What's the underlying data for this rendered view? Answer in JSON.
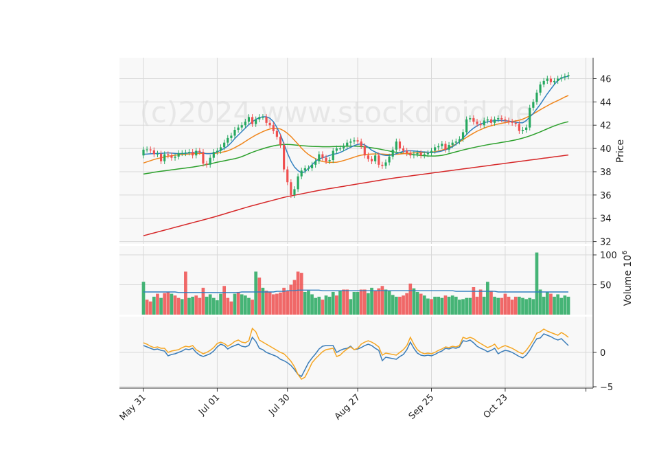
{
  "watermark": "(c)2024 www.stockdroid.de",
  "chart_data": [
    {
      "type": "candlestick",
      "panel": "price",
      "ylabel": "Price",
      "ylim": [
        31.8,
        47.8
      ],
      "yticks": [
        32,
        34,
        36,
        38,
        40,
        42,
        44,
        46
      ],
      "x_ticks": [
        {
          "index": 0,
          "label": "May 31"
        },
        {
          "index": 21,
          "label": "Jul 01"
        },
        {
          "index": 41,
          "label": "Jul 30"
        },
        {
          "index": 61,
          "label": "Aug 27"
        },
        {
          "index": 82,
          "label": "Sep 25"
        },
        {
          "index": 103,
          "label": "Oct 23"
        },
        {
          "index": 126,
          "label": ""
        }
      ],
      "grid": true,
      "colors": {
        "up": "#26a85f",
        "down": "#ef4f4f",
        "sma_10": "#2f7fbf",
        "sma_20": "#f0861c",
        "sma_50": "#2ca02c",
        "sma_200": "#d62728"
      },
      "close": [
        39.9,
        39.92,
        39.84,
        39.5,
        39.55,
        38.9,
        39.5,
        39.4,
        39.2,
        39.3,
        39.6,
        39.6,
        39.65,
        39.7,
        39.4,
        39.8,
        39.7,
        38.7,
        38.6,
        39.2,
        39.7,
        39.8,
        40.1,
        40.5,
        40.9,
        41.1,
        41.6,
        41.8,
        42.0,
        42.3,
        42.7,
        42.1,
        42.5,
        42.7,
        42.7,
        42.2,
        42.0,
        41.5,
        41.0,
        40.3,
        38.2,
        37.1,
        36.0,
        36.5,
        37.6,
        38.1,
        38.3,
        38.3,
        38.6,
        38.9,
        39.5,
        39.2,
        38.9,
        39.0,
        39.8,
        40.0,
        40.0,
        40.2,
        40.5,
        40.6,
        40.7,
        40.6,
        40.2,
        39.4,
        39.1,
        38.9,
        39.4,
        38.6,
        38.5,
        38.8,
        39.3,
        39.9,
        40.6,
        40.0,
        39.8,
        39.6,
        39.4,
        39.5,
        39.6,
        39.4,
        39.5,
        39.6,
        39.8,
        40.1,
        40.2,
        40.4,
        39.9,
        40.3,
        40.5,
        40.6,
        40.8,
        41.4,
        42.5,
        42.6,
        42.3,
        42.1,
        42.0,
        42.4,
        42.5,
        42.2,
        42.5,
        42.6,
        42.5,
        42.4,
        42.3,
        42.2,
        42.1,
        41.5,
        41.6,
        41.8,
        43.5,
        44.0,
        44.8,
        45.5,
        45.8,
        46.0,
        45.7,
        45.8,
        46.0,
        46.1,
        46.2,
        46.3
      ],
      "sma_10": [
        39.5,
        39.52,
        39.54,
        39.56,
        39.57,
        39.58,
        39.6,
        39.62,
        39.6,
        39.58,
        39.56,
        39.57,
        39.58,
        39.62,
        39.65,
        39.7,
        39.7,
        39.6,
        39.55,
        39.55,
        39.6,
        39.7,
        39.85,
        40.0,
        40.2,
        40.5,
        40.85,
        41.15,
        41.45,
        41.75,
        42.05,
        42.3,
        42.5,
        42.65,
        42.72,
        42.72,
        42.6,
        42.3,
        41.8,
        41.2,
        40.4,
        39.6,
        38.9,
        38.4,
        38.1,
        37.9,
        38.0,
        38.3,
        38.6,
        38.9,
        39.1,
        39.2,
        39.3,
        39.4,
        39.5,
        39.55,
        39.65,
        39.8,
        39.95,
        40.1,
        40.25,
        40.35,
        40.4,
        40.3,
        40.1,
        39.85,
        39.7,
        39.55,
        39.45,
        39.4,
        39.4,
        39.45,
        39.55,
        39.65,
        39.75,
        39.8,
        39.8,
        39.78,
        39.75,
        39.72,
        39.7,
        39.68,
        39.66,
        39.67,
        39.72,
        39.78,
        39.88,
        40.0,
        40.15,
        40.35,
        40.6,
        40.9,
        41.2,
        41.5,
        41.75,
        41.95,
        42.1,
        42.2,
        42.3,
        42.35,
        42.38,
        42.4,
        42.4,
        42.38,
        42.35,
        42.3,
        42.25,
        42.2,
        42.2,
        42.4,
        42.7,
        43.0,
        43.4,
        43.8,
        44.25,
        44.7,
        45.1,
        45.5,
        45.85,
        46.05,
        46.15,
        46.2
      ],
      "sma_20": [
        38.75,
        38.85,
        38.95,
        39.05,
        39.13,
        39.2,
        39.27,
        39.33,
        39.38,
        39.42,
        39.45,
        39.48,
        39.5,
        39.52,
        39.54,
        39.56,
        39.58,
        39.58,
        39.57,
        39.57,
        39.58,
        39.6,
        39.65,
        39.72,
        39.8,
        39.92,
        40.07,
        40.23,
        40.4,
        40.6,
        40.8,
        40.98,
        41.15,
        41.3,
        41.45,
        41.57,
        41.67,
        41.73,
        41.73,
        41.67,
        41.52,
        41.3,
        41.02,
        40.7,
        40.37,
        40.03,
        39.73,
        39.48,
        39.28,
        39.12,
        38.98,
        38.88,
        38.83,
        38.8,
        38.8,
        38.82,
        38.88,
        38.96,
        39.05,
        39.15,
        39.25,
        39.35,
        39.42,
        39.47,
        39.5,
        39.52,
        39.53,
        39.53,
        39.52,
        39.5,
        39.48,
        39.48,
        39.5,
        39.52,
        39.55,
        39.57,
        39.6,
        39.62,
        39.63,
        39.64,
        39.65,
        39.66,
        39.68,
        39.72,
        39.78,
        39.86,
        39.96,
        40.08,
        40.22,
        40.38,
        40.56,
        40.75,
        40.95,
        41.14,
        41.32,
        41.48,
        41.62,
        41.75,
        41.86,
        41.95,
        42.03,
        42.1,
        42.16,
        42.22,
        42.27,
        42.32,
        42.37,
        42.43,
        42.52,
        42.65,
        42.8,
        42.97,
        43.15,
        43.33,
        43.5,
        43.67,
        43.83,
        43.98,
        44.12,
        44.27,
        44.42,
        44.55
      ],
      "sma_50": [
        37.8,
        37.85,
        37.9,
        37.95,
        38.0,
        38.04,
        38.08,
        38.12,
        38.16,
        38.2,
        38.24,
        38.28,
        38.32,
        38.36,
        38.4,
        38.45,
        38.5,
        38.56,
        38.62,
        38.68,
        38.75,
        38.82,
        38.88,
        38.94,
        39.0,
        39.06,
        39.12,
        39.2,
        39.3,
        39.42,
        39.55,
        39.67,
        39.78,
        39.88,
        39.98,
        40.07,
        40.15,
        40.22,
        40.28,
        40.32,
        40.35,
        40.35,
        40.33,
        40.3,
        40.27,
        40.24,
        40.22,
        40.2,
        40.18,
        40.17,
        40.16,
        40.15,
        40.15,
        40.15,
        40.16,
        40.17,
        40.18,
        40.19,
        40.2,
        40.2,
        40.2,
        40.19,
        40.17,
        40.14,
        40.1,
        40.06,
        40.01,
        39.96,
        39.9,
        39.84,
        39.78,
        39.72,
        39.67,
        39.63,
        39.59,
        39.55,
        39.51,
        39.47,
        39.43,
        39.4,
        39.38,
        39.36,
        39.35,
        39.35,
        39.37,
        39.41,
        39.47,
        39.55,
        39.63,
        39.71,
        39.79,
        39.87,
        39.94,
        40.01,
        40.08,
        40.14,
        40.2,
        40.26,
        40.32,
        40.37,
        40.42,
        40.47,
        40.52,
        40.57,
        40.62,
        40.68,
        40.74,
        40.81,
        40.89,
        40.98,
        41.08,
        41.19,
        41.31,
        41.43,
        41.56,
        41.69,
        41.82,
        41.94,
        42.05,
        42.15,
        42.23,
        42.3
      ],
      "sma_200": [
        32.5,
        32.58,
        32.66,
        32.74,
        32.82,
        32.9,
        32.98,
        33.06,
        33.14,
        33.22,
        33.3,
        33.38,
        33.46,
        33.54,
        33.62,
        33.7,
        33.78,
        33.86,
        33.94,
        34.02,
        34.1,
        34.19,
        34.28,
        34.37,
        34.46,
        34.55,
        34.64,
        34.73,
        34.82,
        34.91,
        35.0,
        35.08,
        35.16,
        35.24,
        35.32,
        35.4,
        35.48,
        35.56,
        35.64,
        35.72,
        35.8,
        35.86,
        35.92,
        35.98,
        36.04,
        36.1,
        36.16,
        36.22,
        36.28,
        36.34,
        36.4,
        36.45,
        36.5,
        36.55,
        36.6,
        36.65,
        36.7,
        36.75,
        36.8,
        36.85,
        36.9,
        36.95,
        37.0,
        37.05,
        37.1,
        37.15,
        37.2,
        37.25,
        37.3,
        37.35,
        37.4,
        37.44,
        37.48,
        37.52,
        37.56,
        37.6,
        37.64,
        37.68,
        37.72,
        37.76,
        37.8,
        37.84,
        37.88,
        37.92,
        37.96,
        38.0,
        38.04,
        38.08,
        38.12,
        38.16,
        38.2,
        38.24,
        38.28,
        38.32,
        38.36,
        38.4,
        38.44,
        38.48,
        38.52,
        38.56,
        38.6,
        38.64,
        38.68,
        38.72,
        38.76,
        38.8,
        38.84,
        38.88,
        38.92,
        38.96,
        39.0,
        39.04,
        39.08,
        39.12,
        39.16,
        39.2,
        39.24,
        39.28,
        39.32,
        39.36,
        39.4,
        39.44
      ]
    },
    {
      "type": "bar",
      "panel": "volume",
      "ylabel": "Volume  10",
      "ylabel_exponent": "6",
      "ylim": [
        0,
        115
      ],
      "yticks": [
        50,
        100
      ],
      "values": [
        55,
        25,
        22,
        30,
        35,
        28,
        36,
        38,
        35,
        32,
        28,
        26,
        72,
        28,
        30,
        32,
        28,
        45,
        30,
        34,
        28,
        24,
        35,
        48,
        28,
        22,
        35,
        38,
        34,
        32,
        28,
        25,
        72,
        62,
        45,
        40,
        38,
        34,
        35,
        37,
        45,
        40,
        50,
        58,
        72,
        70,
        38,
        40,
        34,
        28,
        30,
        25,
        32,
        30,
        38,
        32,
        40,
        42,
        42,
        26,
        38,
        38,
        42,
        42,
        36,
        45,
        40,
        44,
        48,
        42,
        40,
        33,
        30,
        30,
        32,
        36,
        52,
        44,
        38,
        35,
        32,
        27,
        26,
        30,
        30,
        28,
        32,
        30,
        32,
        30,
        25,
        26,
        28,
        28,
        46,
        30,
        42,
        30,
        55,
        40,
        30,
        28,
        28,
        35,
        30,
        25,
        30,
        30,
        28,
        26,
        28,
        26,
        104,
        42,
        30,
        38,
        35,
        30,
        34,
        28,
        32,
        30,
        34,
        36,
        30,
        30,
        28,
        26,
        28,
        26
      ],
      "up": [
        1,
        0,
        0,
        1,
        0,
        1,
        0,
        0,
        1,
        0,
        0,
        1,
        0,
        1,
        1,
        0,
        0,
        0,
        1,
        1,
        1,
        1,
        1,
        0,
        0,
        0,
        1,
        0,
        1,
        1,
        1,
        0,
        1,
        0,
        1,
        0,
        0,
        0,
        0,
        0,
        0,
        0,
        0,
        0,
        0,
        0,
        1,
        1,
        1,
        1,
        1,
        0,
        1,
        1,
        1,
        0,
        1,
        0,
        0,
        1,
        1,
        1,
        0,
        0,
        1,
        1,
        0,
        0,
        0,
        1,
        1,
        1,
        1,
        0,
        0,
        0,
        0,
        1,
        1,
        0,
        1,
        1,
        0,
        1,
        1,
        1,
        0,
        1,
        1,
        1,
        1,
        1,
        1,
        1,
        0,
        0,
        0,
        1,
        1,
        0,
        1,
        1,
        0,
        0,
        0,
        0,
        0,
        1,
        1,
        1,
        1,
        1,
        1,
        1,
        1,
        1,
        0,
        1,
        1,
        1,
        1,
        1
      ],
      "avg_line": [
        38,
        38,
        38,
        38,
        38,
        38,
        38,
        38,
        38,
        38,
        37,
        37,
        37,
        37,
        37,
        37,
        37,
        37,
        37,
        37,
        37,
        37,
        37,
        37,
        37,
        37,
        37,
        37,
        38,
        38,
        38,
        38,
        38,
        38,
        38,
        38,
        38,
        38,
        39,
        39,
        39,
        40,
        40,
        40,
        41,
        41,
        41,
        41,
        41,
        41,
        41,
        40,
        40,
        40,
        40,
        40,
        40,
        40,
        40,
        40,
        40,
        40,
        40,
        40,
        40,
        40,
        40,
        40,
        40,
        40,
        40,
        40,
        40,
        40,
        40,
        40,
        40,
        40,
        40,
        40,
        40,
        40,
        40,
        40,
        40,
        40,
        40,
        40,
        40,
        39,
        39,
        39,
        39,
        39,
        39,
        39,
        39,
        39,
        39,
        39,
        39,
        38,
        38,
        38,
        38,
        38,
        38,
        38,
        38,
        38,
        38,
        38,
        38,
        38,
        38,
        38,
        38,
        38,
        38,
        38,
        38,
        38,
        38,
        38,
        38,
        38
      ]
    },
    {
      "type": "line",
      "panel": "indicator",
      "ylim": [
        -5.2,
        5.2
      ],
      "yticks": [
        -5,
        0
      ],
      "series": [
        {
          "color": "#3a7cb8",
          "values": [
            1.0,
            0.8,
            0.6,
            0.4,
            0.5,
            0.3,
            0.2,
            -0.5,
            -0.3,
            -0.2,
            0.0,
            0.2,
            0.5,
            0.4,
            0.6,
            0.0,
            -0.4,
            -0.6,
            -0.4,
            -0.2,
            0.2,
            0.8,
            1.2,
            1.0,
            0.5,
            0.8,
            1.0,
            1.2,
            0.9,
            0.8,
            1.0,
            2.2,
            1.6,
            0.6,
            0.4,
            0.0,
            -0.2,
            -0.4,
            -0.6,
            -1.0,
            -1.2,
            -1.5,
            -1.9,
            -2.5,
            -3.2,
            -3.5,
            -2.5,
            -1.5,
            -0.8,
            -0.2,
            0.5,
            0.9,
            1.0,
            1.0,
            1.0,
            0.0,
            0.3,
            0.5,
            0.6,
            0.9,
            0.4,
            0.5,
            0.7,
            1.0,
            1.2,
            1.0,
            0.6,
            0.3,
            -1.2,
            -0.7,
            -0.8,
            -0.9,
            -1.0,
            -0.6,
            -0.3,
            0.4,
            1.5,
            0.6,
            -0.1,
            -0.4,
            -0.5,
            -0.4,
            -0.5,
            -0.3,
            0.0,
            0.2,
            0.6,
            0.5,
            0.7,
            0.6,
            0.8,
            1.7,
            1.6,
            1.8,
            1.4,
            0.9,
            0.6,
            0.4,
            0.1,
            0.3,
            0.6,
            -0.2,
            0.1,
            0.3,
            0.2,
            0.0,
            -0.3,
            -0.6,
            -0.8,
            -0.4,
            0.3,
            1.2,
            2.0,
            2.1,
            2.7,
            2.5,
            2.3,
            2.0,
            1.8,
            2.0,
            1.5,
            1.0,
            0.5
          ]
        },
        {
          "color": "#f5a623",
          "values": [
            1.4,
            1.2,
            0.9,
            0.7,
            0.8,
            0.6,
            0.6,
            0.0,
            0.2,
            0.3,
            0.4,
            0.7,
            0.9,
            0.8,
            1.0,
            0.4,
            0.1,
            -0.2,
            0.0,
            0.3,
            0.7,
            1.3,
            1.5,
            1.3,
            0.9,
            1.2,
            1.6,
            1.8,
            1.5,
            1.4,
            1.7,
            3.5,
            3.0,
            1.8,
            1.5,
            1.2,
            0.9,
            0.6,
            0.3,
            0.0,
            -0.2,
            -0.7,
            -1.3,
            -2.1,
            -3.2,
            -3.9,
            -3.6,
            -2.6,
            -1.5,
            -0.9,
            -0.4,
            0.1,
            0.4,
            0.5,
            0.6,
            -0.6,
            -0.4,
            0.1,
            0.5,
            0.8,
            0.4,
            0.6,
            1.2,
            1.5,
            1.7,
            1.5,
            1.2,
            0.8,
            -0.4,
            -0.1,
            -0.2,
            -0.3,
            -0.4,
            0.0,
            0.4,
            1.0,
            2.2,
            1.2,
            0.4,
            0.0,
            -0.2,
            -0.1,
            -0.2,
            0.0,
            0.3,
            0.5,
            0.8,
            0.7,
            0.9,
            0.8,
            1.0,
            2.2,
            2.0,
            2.2,
            2.0,
            1.6,
            1.3,
            1.0,
            0.7,
            0.9,
            1.2,
            0.5,
            0.8,
            1.0,
            0.8,
            0.6,
            0.3,
            0.0,
            -0.2,
            0.3,
            1.0,
            1.8,
            2.8,
            3.0,
            3.4,
            3.1,
            2.9,
            2.7,
            2.5,
            2.9,
            2.6,
            2.2,
            1.6
          ]
        }
      ]
    }
  ]
}
